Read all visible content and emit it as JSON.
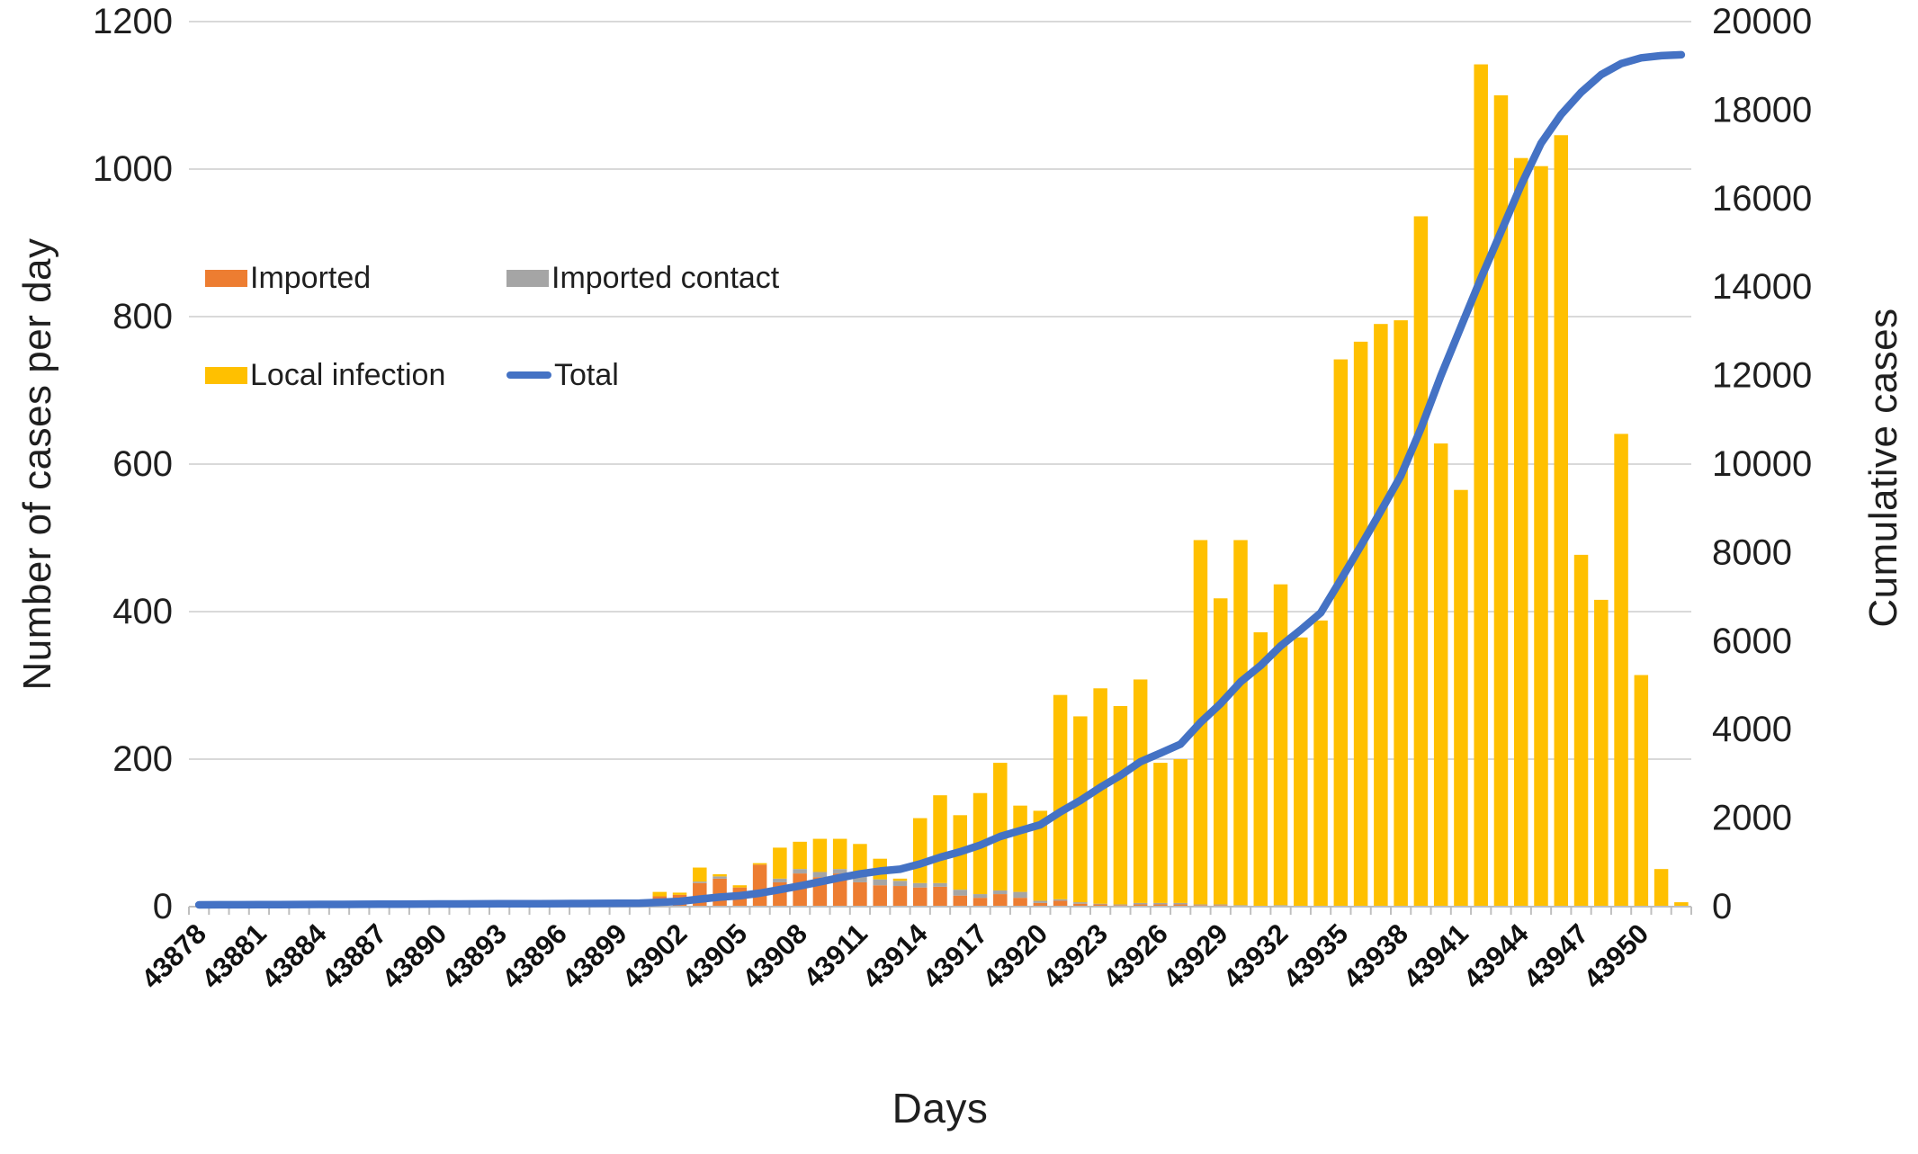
{
  "figure": {
    "xlabel": "Days",
    "ylabel_left": "Number of cases per day",
    "ylabel_right": "Cumulative cases"
  },
  "legend": {
    "items": [
      {
        "label": "Imported",
        "color": "#ED7D31",
        "marker": "box"
      },
      {
        "label": "Imported contact",
        "color": "#A5A5A5",
        "marker": "box"
      },
      {
        "label": "Local infection",
        "color": "#FFC000",
        "marker": "box"
      },
      {
        "label": "Total",
        "color": "#4472C4",
        "marker": "line"
      }
    ]
  },
  "colors": {
    "imported": "#ED7D31",
    "imported_contact": "#A5A5A5",
    "local_infection": "#FFC000",
    "total_line": "#4472C4",
    "gridline": "#D9D9D9",
    "axis_line": "#BFBFBF",
    "text": "#1f1f1f"
  },
  "chart_data": {
    "type": "combo-stacked-bar-line",
    "categories": [
      43878,
      43879,
      43880,
      43881,
      43882,
      43883,
      43884,
      43885,
      43886,
      43887,
      43888,
      43889,
      43890,
      43891,
      43892,
      43893,
      43894,
      43895,
      43896,
      43897,
      43898,
      43899,
      43900,
      43901,
      43902,
      43903,
      43904,
      43905,
      43906,
      43907,
      43908,
      43909,
      43910,
      43911,
      43912,
      43913,
      43914,
      43915,
      43916,
      43917,
      43918,
      43919,
      43920,
      43921,
      43922,
      43923,
      43924,
      43925,
      43926,
      43927,
      43928,
      43929,
      43930,
      43931,
      43932,
      43933,
      43934,
      43935,
      43936,
      43937,
      43938,
      43939,
      43940,
      43941,
      43942,
      43943,
      43944,
      43945,
      43946,
      43947,
      43948,
      43949,
      43950,
      43951,
      43952
    ],
    "series": [
      {
        "name": "Imported",
        "type": "bar",
        "stack_order": 1,
        "color": "#ED7D31",
        "values": [
          1,
          1,
          1,
          1,
          1,
          1,
          1,
          2,
          1,
          1,
          1,
          1,
          2,
          1,
          1,
          2,
          2,
          2,
          2,
          3,
          3,
          3,
          3,
          14,
          16,
          32,
          38,
          26,
          57,
          33,
          45,
          40,
          45,
          33,
          29,
          28,
          26,
          27,
          15,
          12,
          17,
          12,
          5,
          8,
          4,
          3,
          2,
          3,
          3,
          3,
          2,
          2,
          1,
          1,
          1,
          0,
          1,
          0,
          0,
          0,
          0,
          0,
          0,
          0,
          0,
          0,
          0,
          0,
          0,
          0,
          0,
          0,
          0,
          0,
          0
        ]
      },
      {
        "name": "Imported contact",
        "type": "bar",
        "stack_order": 2,
        "color": "#A5A5A5",
        "values": [
          0,
          0,
          0,
          0,
          0,
          0,
          0,
          0,
          0,
          0,
          0,
          0,
          0,
          0,
          0,
          0,
          0,
          0,
          0,
          0,
          0,
          0,
          0,
          0,
          0,
          2,
          3,
          0,
          0,
          5,
          6,
          7,
          6,
          8,
          8,
          7,
          6,
          5,
          8,
          5,
          5,
          8,
          3,
          2,
          2,
          1,
          1,
          2,
          2,
          2,
          1,
          1,
          1,
          0,
          1,
          0,
          0,
          0,
          0,
          0,
          0,
          0,
          0,
          0,
          0,
          0,
          0,
          0,
          0,
          0,
          0,
          0,
          0,
          0,
          0
        ]
      },
      {
        "name": "Local infection",
        "type": "bar",
        "stack_order": 3,
        "color": "#FFC000",
        "values": [
          0,
          0,
          0,
          0,
          0,
          0,
          0,
          0,
          0,
          0,
          0,
          0,
          0,
          0,
          0,
          0,
          0,
          0,
          0,
          0,
          0,
          0,
          0,
          6,
          3,
          19,
          3,
          3,
          2,
          42,
          37,
          45,
          41,
          44,
          28,
          3,
          88,
          119,
          101,
          137,
          173,
          117,
          122,
          277,
          252,
          292,
          269,
          303,
          190,
          195,
          494,
          415,
          495,
          371,
          435,
          365,
          387,
          742,
          766,
          790,
          795,
          936,
          628,
          565,
          1142,
          1100,
          1015,
          1004,
          1046,
          477,
          416,
          641,
          314,
          51,
          6
        ]
      },
      {
        "name": "Total",
        "type": "line",
        "axis": "right",
        "color": "#4472C4",
        "values": [
          40,
          42,
          43,
          45,
          46,
          48,
          50,
          51,
          53,
          55,
          56,
          58,
          60,
          61,
          63,
          65,
          66,
          68,
          70,
          72,
          74,
          75,
          80,
          100,
          120,
          170,
          215,
          245,
          305,
          385,
          470,
          560,
          655,
          740,
          805,
          845,
          965,
          1115,
          1240,
          1390,
          1585,
          1720,
          1850,
          2140,
          2400,
          2695,
          2965,
          3275,
          3470,
          3670,
          4165,
          4585,
          5080,
          5450,
          5890,
          6255,
          6640,
          7385,
          8150,
          8940,
          9735,
          10800,
          12000,
          13100,
          14200,
          15250,
          16300,
          17250,
          17900,
          18400,
          18800,
          19050,
          19180,
          19230,
          19250
        ]
      }
    ],
    "left_axis": {
      "label": "Number of cases per day",
      "min": 0,
      "max": 1200,
      "step": 200,
      "ticks": [
        0,
        200,
        400,
        600,
        800,
        1000,
        1200
      ]
    },
    "right_axis": {
      "label": "Cumulative cases",
      "min": 0,
      "max": 20000,
      "step": 2000,
      "ticks": [
        0,
        2000,
        4000,
        6000,
        8000,
        10000,
        12000,
        14000,
        16000,
        18000,
        20000
      ]
    },
    "x_axis": {
      "label": "Days",
      "tick_labels": [
        43878,
        43881,
        43884,
        43887,
        43890,
        43893,
        43896,
        43899,
        43902,
        43905,
        43908,
        43911,
        43914,
        43917,
        43920,
        43923,
        43926,
        43929,
        43932,
        43935,
        43938,
        43941,
        43944,
        43947,
        43950
      ],
      "tick_label_rotation_deg": 45
    },
    "grid": true,
    "legend_position": "inside-top-left"
  }
}
